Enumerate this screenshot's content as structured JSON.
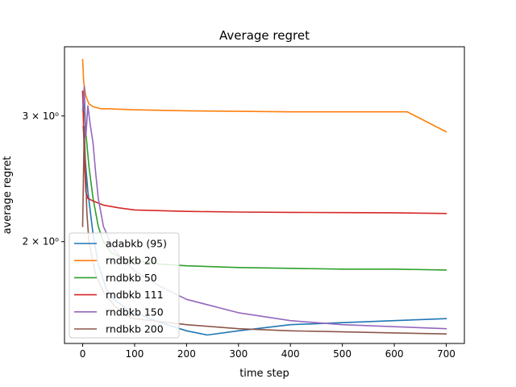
{
  "chart_data": {
    "type": "line",
    "title": "Average regret",
    "xlabel": "time step",
    "ylabel": "average regret",
    "x_ticks": [
      0,
      100,
      200,
      300,
      400,
      500,
      600,
      700
    ],
    "y_ticks": [
      {
        "value": 2,
        "label": "2 × 10⁰"
      },
      {
        "value": 3,
        "label": "3 × 10⁰"
      }
    ],
    "xlim": [
      -35,
      735
    ],
    "ylim": [
      1.44,
      3.75
    ],
    "yscale": "log",
    "grid": false,
    "legend_position": "lower left",
    "series": [
      {
        "name": "adabkb (95)",
        "color": "#1f77b4",
        "points": [
          [
            1,
            2.9
          ],
          [
            5,
            2.6
          ],
          [
            10,
            2.35
          ],
          [
            20,
            2.05
          ],
          [
            30,
            1.86
          ],
          [
            45,
            1.72
          ],
          [
            60,
            1.66
          ],
          [
            80,
            1.62
          ],
          [
            100,
            1.59
          ],
          [
            150,
            1.54
          ],
          [
            200,
            1.5
          ],
          [
            240,
            1.48
          ],
          [
            300,
            1.5
          ],
          [
            400,
            1.53
          ],
          [
            500,
            1.54
          ],
          [
            600,
            1.55
          ],
          [
            700,
            1.56
          ]
        ]
      },
      {
        "name": "rndbkb 20",
        "color": "#ff7f0e",
        "points": [
          [
            0,
            3.6
          ],
          [
            2,
            3.35
          ],
          [
            6,
            3.2
          ],
          [
            12,
            3.12
          ],
          [
            20,
            3.09
          ],
          [
            35,
            3.07
          ],
          [
            50,
            3.07
          ],
          [
            100,
            3.06
          ],
          [
            200,
            3.05
          ],
          [
            300,
            3.045
          ],
          [
            400,
            3.04
          ],
          [
            500,
            3.04
          ],
          [
            600,
            3.04
          ],
          [
            625,
            3.04
          ],
          [
            700,
            2.85
          ]
        ]
      },
      {
        "name": "rndbkb 50",
        "color": "#2ca02c",
        "points": [
          [
            0,
            3.25
          ],
          [
            5,
            2.9
          ],
          [
            12,
            2.55
          ],
          [
            20,
            2.3
          ],
          [
            30,
            2.1
          ],
          [
            40,
            2.0
          ],
          [
            55,
            1.93
          ],
          [
            80,
            1.89
          ],
          [
            100,
            1.88
          ],
          [
            150,
            1.86
          ],
          [
            200,
            1.85
          ],
          [
            300,
            1.84
          ],
          [
            400,
            1.835
          ],
          [
            500,
            1.83
          ],
          [
            600,
            1.83
          ],
          [
            700,
            1.825
          ]
        ]
      },
      {
        "name": "rndbkb 111",
        "color": "#d62728",
        "points": [
          [
            0,
            3.25
          ],
          [
            3,
            2.65
          ],
          [
            6,
            2.35
          ],
          [
            10,
            2.3
          ],
          [
            20,
            2.28
          ],
          [
            40,
            2.25
          ],
          [
            70,
            2.23
          ],
          [
            100,
            2.215
          ],
          [
            200,
            2.205
          ],
          [
            300,
            2.2
          ],
          [
            400,
            2.198
          ],
          [
            500,
            2.196
          ],
          [
            600,
            2.195
          ],
          [
            700,
            2.19
          ]
        ]
      },
      {
        "name": "rndbkb 150",
        "color": "#9467bd",
        "points": [
          [
            0,
            3.05
          ],
          [
            3,
            3.3
          ],
          [
            6,
            2.8
          ],
          [
            10,
            3.1
          ],
          [
            15,
            2.9
          ],
          [
            20,
            2.75
          ],
          [
            25,
            2.5
          ],
          [
            30,
            2.3
          ],
          [
            40,
            2.1
          ],
          [
            60,
            1.95
          ],
          [
            80,
            1.88
          ],
          [
            100,
            1.82
          ],
          [
            150,
            1.73
          ],
          [
            200,
            1.66
          ],
          [
            300,
            1.59
          ],
          [
            400,
            1.55
          ],
          [
            500,
            1.53
          ],
          [
            600,
            1.52
          ],
          [
            700,
            1.51
          ]
        ]
      },
      {
        "name": "rndbkb 200",
        "color": "#8c564b",
        "points": [
          [
            0,
            2.1
          ],
          [
            3,
            2.9
          ],
          [
            5,
            2.6
          ],
          [
            8,
            2.2
          ],
          [
            12,
            2.0
          ],
          [
            18,
            1.9
          ],
          [
            25,
            1.8
          ],
          [
            40,
            1.7
          ],
          [
            60,
            1.63
          ],
          [
            80,
            1.58
          ],
          [
            100,
            1.56
          ],
          [
            200,
            1.53
          ],
          [
            300,
            1.51
          ],
          [
            400,
            1.5
          ],
          [
            500,
            1.495
          ],
          [
            600,
            1.49
          ],
          [
            700,
            1.485
          ]
        ]
      }
    ]
  }
}
